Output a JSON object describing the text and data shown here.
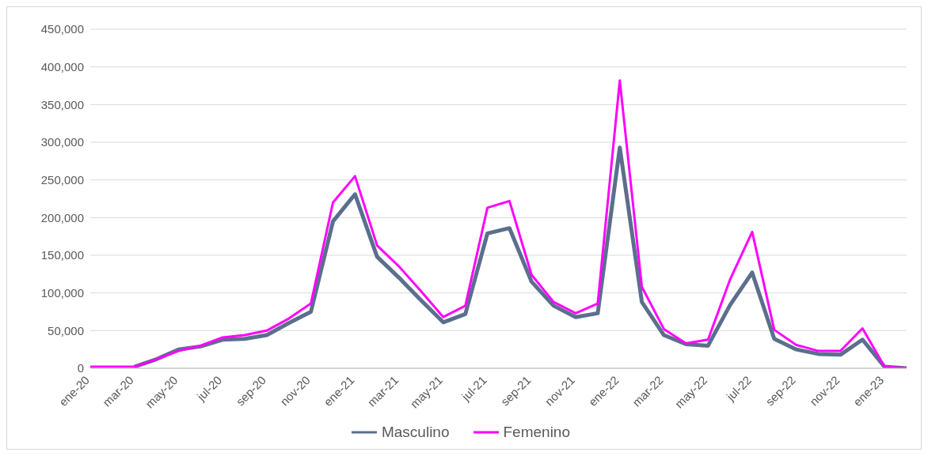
{
  "chart_data": {
    "type": "line",
    "categories": [
      "ene-20",
      null,
      "mar-20",
      null,
      "may-20",
      null,
      "jul-20",
      null,
      "sep-20",
      null,
      "nov-20",
      null,
      "ene-21",
      null,
      "mar-21",
      null,
      "may-21",
      null,
      "jul-21",
      null,
      "sep-21",
      null,
      "nov-21",
      null,
      "ene-22",
      null,
      "mar-22",
      null,
      "may-22",
      null,
      "jul-22",
      null,
      "sep-22",
      null,
      "nov-22",
      null,
      "ene-23",
      null
    ],
    "series": [
      {
        "name": "Masculino",
        "color": "#5b6f8d",
        "values": [
          null,
          null,
          2000,
          12000,
          25000,
          29000,
          38000,
          39000,
          44000,
          60000,
          75000,
          195000,
          231000,
          148000,
          120000,
          90000,
          61000,
          72000,
          179000,
          186000,
          115000,
          83000,
          68000,
          73000,
          293000,
          88000,
          44000,
          32000,
          30000,
          84000,
          127000,
          39000,
          25000,
          19000,
          18000,
          38000,
          2000,
          0
        ]
      },
      {
        "name": "Femenino",
        "color": "#ff00ff",
        "values": [
          2000,
          2000,
          2000,
          12000,
          23000,
          30000,
          41000,
          44000,
          50000,
          66000,
          86000,
          220000,
          255000,
          163000,
          135000,
          102000,
          68000,
          83000,
          213000,
          222000,
          124000,
          88000,
          73000,
          86000,
          382000,
          108000,
          52000,
          33000,
          38000,
          118000,
          181000,
          51000,
          31000,
          23000,
          23000,
          53000,
          2000,
          0
        ]
      }
    ],
    "ylim": [
      0,
      450000
    ],
    "yticks": [
      {
        "value": 0,
        "label": "0"
      },
      {
        "value": 50000,
        "label": "50,000"
      },
      {
        "value": 100000,
        "label": "100,000"
      },
      {
        "value": 150000,
        "label": "150,000"
      },
      {
        "value": 200000,
        "label": "200,000"
      },
      {
        "value": 250000,
        "label": "250,000"
      },
      {
        "value": 300000,
        "label": "300,000"
      },
      {
        "value": 350000,
        "label": "350,000"
      },
      {
        "value": 400000,
        "label": "400,000"
      },
      {
        "value": 450000,
        "label": "450,000"
      }
    ],
    "grid": "y",
    "legend": "bottom",
    "line_style": "solid"
  }
}
